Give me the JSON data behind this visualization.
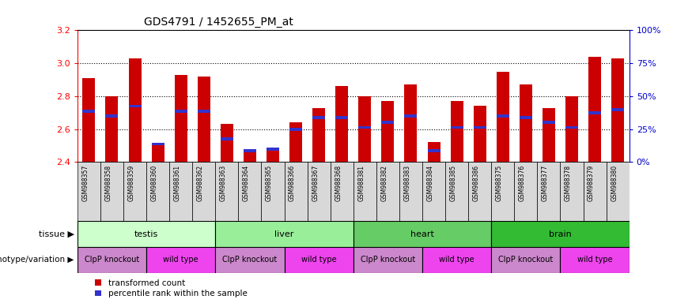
{
  "title": "GDS4791 / 1452655_PM_at",
  "samples": [
    "GSM988357",
    "GSM988358",
    "GSM988359",
    "GSM988360",
    "GSM988361",
    "GSM988362",
    "GSM988363",
    "GSM988364",
    "GSM988365",
    "GSM988366",
    "GSM988367",
    "GSM988368",
    "GSM988381",
    "GSM988382",
    "GSM988383",
    "GSM988384",
    "GSM988385",
    "GSM988386",
    "GSM988375",
    "GSM988376",
    "GSM988377",
    "GSM988378",
    "GSM988379",
    "GSM988380"
  ],
  "bar_heights": [
    2.91,
    2.8,
    3.03,
    2.51,
    2.93,
    2.92,
    2.63,
    2.47,
    2.49,
    2.64,
    2.73,
    2.86,
    2.8,
    2.77,
    2.87,
    2.52,
    2.77,
    2.74,
    2.95,
    2.87,
    2.73,
    2.8,
    3.04,
    3.03
  ],
  "blue_markers": [
    2.71,
    2.68,
    2.74,
    2.51,
    2.71,
    2.71,
    2.54,
    2.47,
    2.48,
    2.6,
    2.67,
    2.67,
    2.61,
    2.64,
    2.68,
    2.47,
    2.61,
    2.61,
    2.68,
    2.67,
    2.64,
    2.61,
    2.7,
    2.72
  ],
  "ylim": [
    2.4,
    3.2
  ],
  "yticks": [
    2.4,
    2.6,
    2.8,
    3.0,
    3.2
  ],
  "bar_color": "#cc0000",
  "blue_color": "#3333cc",
  "bar_width": 0.55,
  "tissues": [
    {
      "label": "testis",
      "start": 0,
      "end": 6,
      "color": "#ccffcc"
    },
    {
      "label": "liver",
      "start": 6,
      "end": 12,
      "color": "#99ee99"
    },
    {
      "label": "heart",
      "start": 12,
      "end": 18,
      "color": "#66cc66"
    },
    {
      "label": "brain",
      "start": 18,
      "end": 24,
      "color": "#33bb33"
    }
  ],
  "genotypes": [
    {
      "label": "ClpP knockout",
      "start": 0,
      "end": 3,
      "color": "#cc88cc"
    },
    {
      "label": "wild type",
      "start": 3,
      "end": 6,
      "color": "#ee44ee"
    },
    {
      "label": "ClpP knockout",
      "start": 6,
      "end": 9,
      "color": "#cc88cc"
    },
    {
      "label": "wild type",
      "start": 9,
      "end": 12,
      "color": "#ee44ee"
    },
    {
      "label": "ClpP knockout",
      "start": 12,
      "end": 15,
      "color": "#cc88cc"
    },
    {
      "label": "wild type",
      "start": 15,
      "end": 18,
      "color": "#ee44ee"
    },
    {
      "label": "ClpP knockout",
      "start": 18,
      "end": 21,
      "color": "#cc88cc"
    },
    {
      "label": "wild type",
      "start": 21,
      "end": 24,
      "color": "#ee44ee"
    }
  ],
  "tissue_label": "tissue",
  "genotype_label": "genotype/variation",
  "legend_items": [
    {
      "label": "transformed count",
      "color": "#cc0000"
    },
    {
      "label": "percentile rank within the sample",
      "color": "#3333cc"
    }
  ],
  "right_ytick_labels": [
    "0%",
    "25%",
    "50%",
    "75%",
    "100%"
  ],
  "right_ytick_values": [
    2.4,
    2.6,
    2.8,
    3.0,
    3.2
  ],
  "right_ylabel_color": "#0000cc",
  "xtick_bg": "#e0e0e0"
}
